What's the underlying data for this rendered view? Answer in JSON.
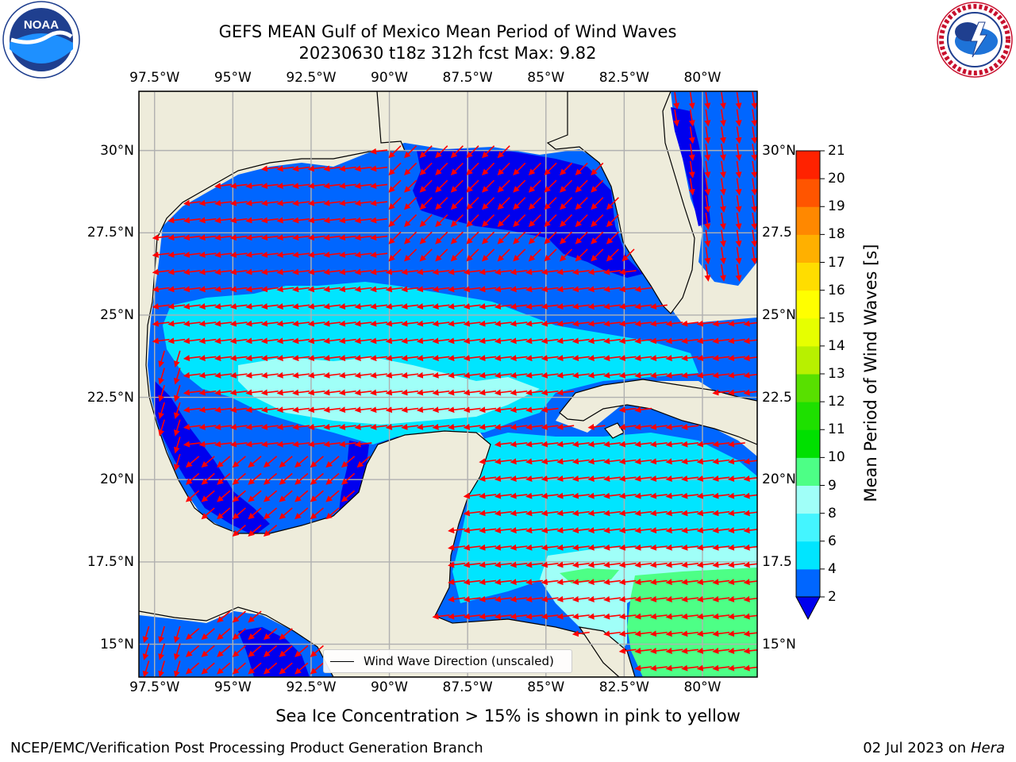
{
  "title": {
    "line1": "GEFS MEAN Gulf of Mexico Mean Period of Wind Waves",
    "line2": "20230630 t18z 312h fcst   Max: 9.82"
  },
  "logos": {
    "noaa_text": "NOAA",
    "noaa_ring": "NATIONAL OCEANIC AND ATMOSPHERIC ADMINISTRATION · U.S. DEPARTMENT OF COMMERCE",
    "nws_ring": "NATIONAL WEATHER SERVICE"
  },
  "axes": {
    "lon_ticks": [
      "97.5°W",
      "95°W",
      "92.5°W",
      "90°W",
      "87.5°W",
      "85°W",
      "82.5°W",
      "80°W"
    ],
    "lat_ticks_left": [
      "30°N",
      "27.5°N",
      "25°N",
      "22.5°N",
      "20°N",
      "17.5°N",
      "15°N"
    ],
    "lat_ticks_right": [
      "30°N",
      "27.5",
      "25°N",
      "22.5",
      "20°N",
      "17.5",
      "15°N"
    ],
    "lon_values": [
      -97.5,
      -95,
      -92.5,
      -90,
      -87.5,
      -85,
      -82.5,
      -80
    ],
    "lat_values": [
      30,
      27.5,
      25,
      22.5,
      20,
      17.5,
      15
    ],
    "lon_range": [
      -98,
      -78.25
    ],
    "lat_range": [
      14,
      31.8
    ],
    "grid": true
  },
  "legend": {
    "label": "Wind Wave Direction (unscaled)"
  },
  "colorbar": {
    "label": "Mean Period of Wind Waves [s]",
    "ticks": [
      "2",
      "4",
      "6",
      "8",
      "9",
      "10",
      "11",
      "12",
      "13",
      "14",
      "15",
      "16",
      "17",
      "18",
      "19",
      "20",
      "21"
    ],
    "levels": [
      2,
      4,
      6,
      8,
      9,
      10,
      11,
      12,
      13,
      14,
      15,
      16,
      17,
      18,
      19,
      20,
      21
    ],
    "colors": [
      "#0066ff",
      "#00e5ff",
      "#44f5ff",
      "#a0fff8",
      "#4dff86",
      "#00e000",
      "#1ee000",
      "#58e000",
      "#b8f000",
      "#e6ff00",
      "#ffff00",
      "#ffdd00",
      "#ffb000",
      "#ff8800",
      "#ff5500",
      "#ff2200"
    ],
    "extend_color": "#0000ee"
  },
  "note": "Sea Ice Concentration > 15% is shown in pink to yellow",
  "footer": {
    "left": "NCEP/EMC/Verification Post Processing Product Generation Branch",
    "date": "02 Jul 2023 on",
    "machine": "Hera"
  },
  "colors": {
    "land": "#eeecdb",
    "coast": "#000000",
    "arrow": "#ff0000",
    "grid": "#b0b0b0",
    "period_2_4": "#0066ff",
    "period_under_2": "#0000ee",
    "period_4_6": "#00e5ff",
    "period_6_8": "#44f5ff",
    "period_8_9": "#a0fff8",
    "period_9_10": "#4dff86"
  }
}
